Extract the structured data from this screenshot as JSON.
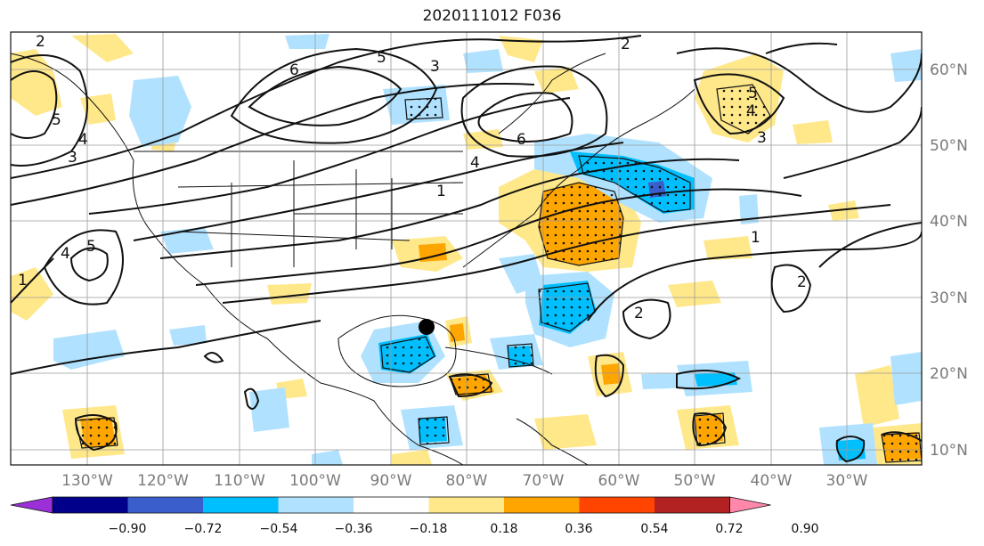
{
  "title": "2020111012 F036",
  "map": {
    "latitude_labels": [
      "60°N",
      "50°N",
      "40°N",
      "30°N",
      "20°N",
      "10°N"
    ],
    "longitude_labels": [
      "130°W",
      "120°W",
      "110°W",
      "100°W",
      "90°W",
      "80°W",
      "70°W",
      "60°W",
      "50°W",
      "40°W",
      "30°W"
    ],
    "contour_labels": [
      "2",
      "6",
      "5",
      "3",
      "2",
      "6",
      "4",
      "1",
      "5",
      "4",
      "3",
      "4",
      "5",
      "1",
      "2",
      "2",
      "1",
      "5",
      "4",
      "3"
    ],
    "storm_marker": {
      "lon": -84.5,
      "lat": 26
    }
  },
  "colorbar": {
    "tick_labels": [
      "−0.90",
      "−0.72",
      "−0.54",
      "−0.36",
      "−0.18",
      "0.18",
      "0.36",
      "0.54",
      "0.72",
      "0.90"
    ],
    "colors": [
      "#9b30d8",
      "#00008b",
      "#3a5fcd",
      "#00bfff",
      "#b0e2ff",
      "#ffffff",
      "#ffe88a",
      "#ffa500",
      "#ff4500",
      "#b22222",
      "#ff88aa"
    ]
  }
}
